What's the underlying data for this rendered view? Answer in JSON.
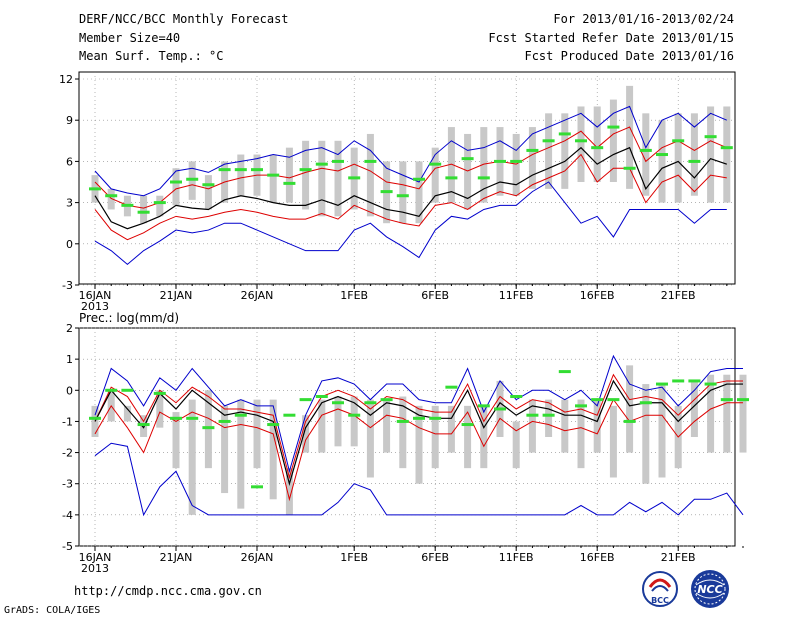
{
  "header": {
    "title": "DERF/NCC/BCC Monthly Forecast",
    "member_size": "Member Size=40",
    "variable": "Mean Surf. Temp.: °C",
    "period": "For 2013/01/16-2013/02/24",
    "started": "Fcst Started Refer Date 2013/01/15",
    "produced": "Fcst Produced Date 2013/01/16"
  },
  "footer": {
    "url": "http://cmdp.ncc.cma.gov.cn",
    "grads": "GrADS: COLA/IGES",
    "logo_bcc": "BCC",
    "logo_ncc": "NCC"
  },
  "colors": {
    "max_line": "#0000cc",
    "min_line": "#0000cc",
    "upper_line": "#dd0000",
    "lower_line": "#dd0000",
    "mean_line": "#000000",
    "box": "#c8c8c8",
    "obs_mark": "#33dd33",
    "grid": "#888888"
  },
  "chart_data": [
    {
      "type": "box",
      "title": "Mean Surf. Temp.: °C",
      "ylabel": "°C",
      "ylim": [
        -3,
        12.5
      ],
      "yticks": [
        -3,
        0,
        3,
        6,
        9,
        12
      ],
      "x_tick_days": [
        0,
        5,
        10,
        16,
        21,
        26,
        31,
        36
      ],
      "x_tick_labels": [
        "16JAN",
        "21JAN",
        "26JAN",
        "1FEB",
        "6FEB",
        "11FEB",
        "16FEB",
        "21FEB"
      ],
      "x_year_label": "2013",
      "box_low": [
        3.0,
        2.5,
        2.0,
        1.5,
        2.0,
        2.8,
        3.2,
        2.5,
        3.0,
        3.5,
        3.5,
        3.0,
        3.0,
        2.5,
        2.0,
        2.0,
        2.5,
        2.0,
        1.5,
        1.5,
        1.5,
        3.0,
        3.0,
        2.5,
        3.0,
        3.5,
        3.5,
        4.0,
        4.0,
        4.0,
        4.5,
        4.5,
        4.5,
        4.0,
        3.5,
        3.0,
        3.0,
        3.5,
        3.0,
        3.0
      ],
      "box_high": [
        5.0,
        4.0,
        3.5,
        3.5,
        3.5,
        5.5,
        6.0,
        5.0,
        6.0,
        6.5,
        6.5,
        6.5,
        7.0,
        7.5,
        7.5,
        7.5,
        7.0,
        8.0,
        6.0,
        6.0,
        6.0,
        7.0,
        8.5,
        8.0,
        8.5,
        8.5,
        8.0,
        8.5,
        9.5,
        9.5,
        10.0,
        10.0,
        10.5,
        11.5,
        9.5,
        9.0,
        9.5,
        9.5,
        10.0,
        10.0
      ],
      "max": [
        5.3,
        4.0,
        3.7,
        3.5,
        4.0,
        5.3,
        5.5,
        5.2,
        5.8,
        6.0,
        6.2,
        6.5,
        6.3,
        6.8,
        7.0,
        6.5,
        7.5,
        6.8,
        5.5,
        5.0,
        4.5,
        6.5,
        7.5,
        6.8,
        7.0,
        7.5,
        6.8,
        8.0,
        8.5,
        9.0,
        9.5,
        8.5,
        9.5,
        10.0,
        7.0,
        9.0,
        9.5,
        8.5,
        9.5,
        9.0
      ],
      "upper": [
        4.5,
        3.3,
        2.8,
        2.6,
        3.0,
        4.0,
        4.3,
        4.0,
        4.5,
        4.8,
        5.0,
        5.0,
        4.8,
        5.2,
        5.5,
        5.3,
        5.8,
        5.3,
        4.5,
        4.3,
        4.0,
        5.5,
        5.8,
        5.3,
        5.8,
        6.0,
        5.8,
        6.5,
        7.0,
        7.5,
        8.2,
        7.0,
        8.0,
        8.5,
        6.0,
        7.0,
        7.5,
        6.8,
        7.5,
        7.0
      ],
      "mean": [
        3.5,
        1.6,
        1.1,
        1.5,
        2.0,
        2.8,
        2.6,
        2.5,
        3.2,
        3.5,
        3.3,
        3.0,
        2.8,
        2.8,
        3.2,
        2.8,
        3.5,
        3.0,
        2.5,
        2.3,
        2.0,
        3.5,
        3.8,
        3.3,
        4.0,
        4.5,
        4.3,
        5.0,
        5.5,
        6.0,
        7.0,
        5.8,
        6.5,
        7.0,
        4.0,
        5.5,
        6.0,
        4.8,
        6.2,
        5.8
      ],
      "lower": [
        2.5,
        1.0,
        0.3,
        0.8,
        1.5,
        2.0,
        1.8,
        2.0,
        2.3,
        2.5,
        2.3,
        2.0,
        1.8,
        1.8,
        2.2,
        1.8,
        2.8,
        2.3,
        1.8,
        1.5,
        1.3,
        2.8,
        3.0,
        2.5,
        3.3,
        3.8,
        3.5,
        4.3,
        4.8,
        5.3,
        6.5,
        4.5,
        5.5,
        5.5,
        3.0,
        4.5,
        5.0,
        3.8,
        5.0,
        4.8
      ],
      "min": [
        0.2,
        -0.5,
        -1.5,
        -0.5,
        0.2,
        1.0,
        0.8,
        1.0,
        1.5,
        1.5,
        1.0,
        0.5,
        0.0,
        -0.5,
        -0.5,
        -0.5,
        1.0,
        1.5,
        0.5,
        -0.2,
        -1.0,
        1.0,
        2.0,
        1.8,
        2.5,
        2.8,
        2.8,
        3.8,
        4.5,
        3.0,
        1.5,
        2.0,
        0.5,
        2.5,
        2.5,
        2.5,
        2.5,
        1.5,
        2.5,
        2.5
      ],
      "obs": [
        4.0,
        3.5,
        2.8,
        2.3,
        3.0,
        4.5,
        4.7,
        4.3,
        5.4,
        5.4,
        5.4,
        5.0,
        4.4,
        5.4,
        5.8,
        6.0,
        4.8,
        6.0,
        3.8,
        3.5,
        4.7,
        5.8,
        4.8,
        6.2,
        4.8,
        6.0,
        6.0,
        6.8,
        7.5,
        8.0,
        7.5,
        7.0,
        8.5,
        5.5,
        6.8,
        6.5,
        7.5,
        6.0,
        7.8,
        7.0
      ]
    },
    {
      "type": "box",
      "title": "Prec.: log(mm/d)",
      "ylabel": "log(mm/d)",
      "ylim": [
        -5,
        2
      ],
      "yticks": [
        -5,
        -4,
        -3,
        -2,
        -1,
        0,
        1,
        2
      ],
      "x_tick_days": [
        0,
        5,
        10,
        16,
        21,
        26,
        31,
        36
      ],
      "x_tick_labels": [
        "16JAN",
        "21JAN",
        "26JAN",
        "1FEB",
        "6FEB",
        "11FEB",
        "16FEB",
        "21FEB"
      ],
      "x_year_label": "2013",
      "box_low": [
        -1.5,
        -1.0,
        -1.0,
        -1.5,
        -1.2,
        -2.5,
        -4.0,
        -2.5,
        -3.3,
        -3.8,
        -2.5,
        -3.5,
        -4.0,
        -2.0,
        -2.0,
        -1.8,
        -1.8,
        -2.8,
        -2.0,
        -2.5,
        -3.0,
        -2.5,
        -2.0,
        -2.5,
        -2.5,
        -1.5,
        -2.5,
        -2.0,
        -1.5,
        -2.0,
        -2.5,
        -2.0,
        -2.8,
        -2.0,
        -3.0,
        -2.8,
        -2.5,
        -1.5,
        -2.0,
        -2.0,
        -2.0
      ],
      "box_high": [
        -0.5,
        0.0,
        -0.5,
        -0.8,
        0.0,
        -0.7,
        -0.3,
        0.0,
        -0.5,
        -0.3,
        -0.3,
        -0.3,
        -2.5,
        -0.8,
        -0.3,
        -0.2,
        -0.2,
        -0.3,
        -0.3,
        -0.2,
        -0.5,
        -0.5,
        -0.5,
        -0.5,
        -0.5,
        0.3,
        -1.0,
        -0.3,
        -0.3,
        -0.3,
        -0.3,
        -0.3,
        -0.5,
        0.8,
        0.2,
        0.2,
        -0.5,
        0.3,
        0.5,
        0.5,
        0.5
      ],
      "max": [
        -0.8,
        0.7,
        0.3,
        -0.5,
        0.4,
        0.0,
        0.7,
        0.1,
        -0.5,
        -0.3,
        -0.5,
        -0.5,
        -2.6,
        -0.8,
        0.3,
        0.4,
        0.2,
        -0.3,
        0.2,
        0.2,
        -0.3,
        -0.4,
        -0.4,
        0.7,
        -0.7,
        0.3,
        -0.3,
        0.0,
        0.0,
        -0.3,
        0.0,
        -0.5,
        1.1,
        0.2,
        0.0,
        0.1,
        -0.5,
        0.0,
        0.6,
        0.7,
        0.7
      ],
      "upper": [
        -1.0,
        0.1,
        -0.2,
        -1.0,
        0.0,
        -0.4,
        0.1,
        -0.2,
        -0.6,
        -0.6,
        -0.7,
        -0.8,
        -2.8,
        -1.0,
        -0.2,
        0.0,
        -0.2,
        -0.6,
        -0.2,
        -0.3,
        -0.6,
        -0.7,
        -0.7,
        0.2,
        -1.0,
        -0.2,
        -0.6,
        -0.3,
        -0.4,
        -0.7,
        -0.6,
        -0.8,
        0.5,
        -0.3,
        -0.2,
        -0.3,
        -0.8,
        -0.3,
        0.2,
        0.3,
        0.3
      ],
      "mean": [
        -1.0,
        0.0,
        -0.6,
        -1.2,
        -0.1,
        -0.6,
        0.0,
        -0.4,
        -0.8,
        -0.7,
        -0.8,
        -1.0,
        -3.0,
        -1.2,
        -0.4,
        -0.2,
        -0.4,
        -0.8,
        -0.4,
        -0.5,
        -0.8,
        -0.9,
        -0.9,
        0.0,
        -1.2,
        -0.4,
        -0.8,
        -0.5,
        -0.6,
        -0.8,
        -0.8,
        -1.0,
        0.3,
        -0.5,
        -0.4,
        -0.4,
        -1.0,
        -0.5,
        0.0,
        0.2,
        0.2
      ],
      "lower": [
        -1.4,
        -0.5,
        -1.2,
        -2.0,
        -0.7,
        -1.0,
        -0.7,
        -0.9,
        -1.2,
        -1.1,
        -1.2,
        -1.4,
        -3.5,
        -1.6,
        -0.8,
        -0.6,
        -0.8,
        -1.2,
        -0.8,
        -0.9,
        -1.2,
        -1.4,
        -1.4,
        -0.7,
        -1.8,
        -0.9,
        -1.3,
        -1.0,
        -1.1,
        -1.3,
        -1.2,
        -1.4,
        -0.3,
        -1.0,
        -0.8,
        -0.8,
        -1.5,
        -1.0,
        -0.6,
        -0.4,
        -0.4
      ],
      "min": [
        -2.1,
        -1.7,
        -1.8,
        -4.0,
        -3.1,
        -2.6,
        -3.7,
        -4.0,
        -4.0,
        -4.0,
        -4.0,
        -4.0,
        -4.0,
        -4.0,
        -4.0,
        -3.6,
        -3.0,
        -3.2,
        -4.0,
        -4.0,
        -4.0,
        -4.0,
        -4.0,
        -4.0,
        -4.0,
        -4.0,
        -4.0,
        -4.0,
        -4.0,
        -4.0,
        -3.7,
        -4.0,
        -4.0,
        -3.6,
        -3.9,
        -3.6,
        -4.0,
        -3.5,
        -3.5,
        -3.3,
        -4.0
      ],
      "obs": [
        -0.9,
        0.0,
        0.0,
        -1.1,
        -0.1,
        -0.9,
        -0.9,
        -1.2,
        -1.0,
        -0.8,
        -3.1,
        -1.1,
        -0.8,
        -0.3,
        -0.2,
        -0.4,
        -0.8,
        -0.4,
        -0.3,
        -1.0,
        -0.9,
        -0.9,
        0.1,
        -1.1,
        -0.5,
        -0.6,
        -0.2,
        -0.8,
        -0.8,
        0.6,
        -0.5,
        -0.3,
        -0.3,
        -1.0,
        -0.4,
        0.2,
        0.3,
        0.3,
        0.2,
        -0.3,
        -0.3
      ]
    }
  ]
}
